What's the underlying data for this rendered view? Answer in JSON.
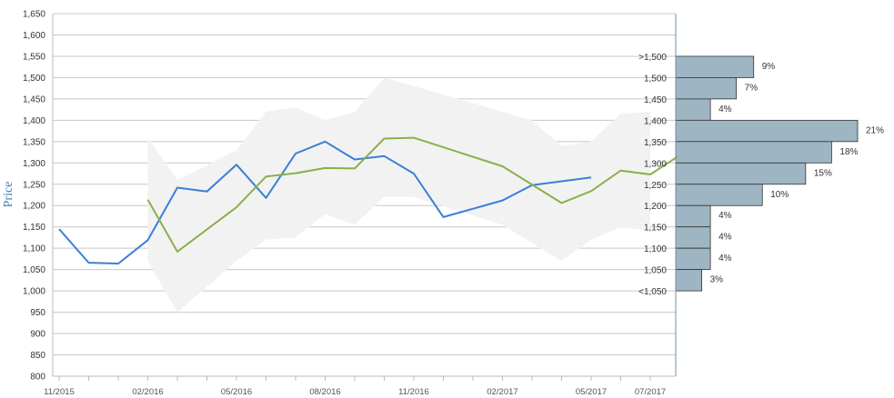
{
  "chart_data": {
    "type": "line",
    "ylabel": "Price",
    "ylim": [
      800,
      1650
    ],
    "y_ticks": [
      800,
      850,
      900,
      950,
      1000,
      1050,
      1100,
      1150,
      1200,
      1250,
      1300,
      1350,
      1400,
      1450,
      1500,
      1550,
      1600,
      1650
    ],
    "y_tick_labels": [
      "800",
      "850",
      "900",
      "950",
      "1,000",
      "1,050",
      "1,100",
      "1,150",
      "1,200",
      "1,250",
      "1,300",
      "1,350",
      "1,400",
      "1,450",
      "1,500",
      "1,550",
      "1,600",
      "1,650"
    ],
    "x_range": [
      "2015-11",
      "2017-07"
    ],
    "x_tick_labels": [
      {
        "date": "2015-11",
        "label": "11/2015"
      },
      {
        "date": "2016-02",
        "label": "02/2016"
      },
      {
        "date": "2016-05",
        "label": "05/2016"
      },
      {
        "date": "2016-08",
        "label": "08/2016"
      },
      {
        "date": "2016-11",
        "label": "11/2016"
      },
      {
        "date": "2017-02",
        "label": "02/2017"
      },
      {
        "date": "2017-05",
        "label": "05/2017"
      },
      {
        "date": "2017-07",
        "label": "07/2017"
      }
    ],
    "grid": true,
    "series": [
      {
        "color": "#3a7fd5",
        "points": [
          {
            "x": "2015-11",
            "y": 1145
          },
          {
            "x": "2015-12",
            "y": 1066
          },
          {
            "x": "2016-01",
            "y": 1064
          },
          {
            "x": "2016-02",
            "y": 1119
          },
          {
            "x": "2016-03",
            "y": 1242
          },
          {
            "x": "2016-04",
            "y": 1233
          },
          {
            "x": "2016-05",
            "y": 1296
          },
          {
            "x": "2016-06",
            "y": 1218
          },
          {
            "x": "2016-07",
            "y": 1322
          },
          {
            "x": "2016-08",
            "y": 1350
          },
          {
            "x": "2016-09",
            "y": 1308
          },
          {
            "x": "2016-10",
            "y": 1316
          },
          {
            "x": "2016-11",
            "y": 1275
          },
          {
            "x": "2016-12",
            "y": 1173
          },
          {
            "x": "2017-02",
            "y": 1212
          },
          {
            "x": "2017-03",
            "y": 1248
          },
          {
            "x": "2017-05",
            "y": 1266
          }
        ]
      },
      {
        "color": "#8ab04a",
        "points": [
          {
            "x": "2016-02",
            "y": 1214
          },
          {
            "x": "2016-03",
            "y": 1092
          },
          {
            "x": "2016-05",
            "y": 1196
          },
          {
            "x": "2016-06",
            "y": 1268
          },
          {
            "x": "2016-07",
            "y": 1276
          },
          {
            "x": "2016-08",
            "y": 1288
          },
          {
            "x": "2016-09",
            "y": 1287
          },
          {
            "x": "2016-10",
            "y": 1357
          },
          {
            "x": "2016-11",
            "y": 1359
          },
          {
            "x": "2017-02",
            "y": 1292
          },
          {
            "x": "2017-04",
            "y": 1206
          },
          {
            "x": "2017-05",
            "y": 1234
          },
          {
            "x": "2017-06",
            "y": 1282
          },
          {
            "x": "2017-07",
            "y": 1273
          },
          {
            "x": "2017-08",
            "y": 1318
          }
        ]
      }
    ],
    "band": {
      "color": "#f2f2f2",
      "upper": [
        {
          "x": "2016-02",
          "y": 1360
        },
        {
          "x": "2016-03",
          "y": 1260
        },
        {
          "x": "2016-05",
          "y": 1330
        },
        {
          "x": "2016-06",
          "y": 1420
        },
        {
          "x": "2016-07",
          "y": 1430
        },
        {
          "x": "2016-08",
          "y": 1400
        },
        {
          "x": "2016-09",
          "y": 1420
        },
        {
          "x": "2016-10",
          "y": 1500
        },
        {
          "x": "2016-11",
          "y": 1480
        },
        {
          "x": "2017-02",
          "y": 1420
        },
        {
          "x": "2017-03",
          "y": 1400
        },
        {
          "x": "2017-04",
          "y": 1340
        },
        {
          "x": "2017-05",
          "y": 1350
        },
        {
          "x": "2017-06",
          "y": 1415
        },
        {
          "x": "2017-07",
          "y": 1420
        }
      ],
      "lower": [
        {
          "x": "2016-02",
          "y": 1070
        },
        {
          "x": "2016-03",
          "y": 950
        },
        {
          "x": "2016-05",
          "y": 1070
        },
        {
          "x": "2016-06",
          "y": 1120
        },
        {
          "x": "2016-07",
          "y": 1125
        },
        {
          "x": "2016-08",
          "y": 1180
        },
        {
          "x": "2016-09",
          "y": 1155
        },
        {
          "x": "2016-10",
          "y": 1220
        },
        {
          "x": "2016-11",
          "y": 1220
        },
        {
          "x": "2017-02",
          "y": 1155
        },
        {
          "x": "2017-04",
          "y": 1070
        },
        {
          "x": "2017-05",
          "y": 1120
        },
        {
          "x": "2017-06",
          "y": 1150
        },
        {
          "x": "2017-07",
          "y": 1140
        }
      ]
    },
    "distribution": {
      "type": "bar",
      "color": "#9eb5c3",
      "bins": [
        {
          "label": ">1,500",
          "low": 1500,
          "high": 1550,
          "percent": 9
        },
        {
          "label": "1,500",
          "low": 1450,
          "high": 1500,
          "percent": 7
        },
        {
          "label": "1,450",
          "low": 1400,
          "high": 1450,
          "percent": 4
        },
        {
          "label": "1,400",
          "low": 1350,
          "high": 1400,
          "percent": 21
        },
        {
          "label": "1,350",
          "low": 1300,
          "high": 1350,
          "percent": 18
        },
        {
          "label": "1,300",
          "low": 1250,
          "high": 1300,
          "percent": 15
        },
        {
          "label": "1,250",
          "low": 1200,
          "high": 1250,
          "percent": 10
        },
        {
          "label": "1,200",
          "low": 1150,
          "high": 1200,
          "percent": 4
        },
        {
          "label": "1,150",
          "low": 1100,
          "high": 1150,
          "percent": 4
        },
        {
          "label": "1,100",
          "low": 1050,
          "high": 1100,
          "percent": 4
        },
        {
          "label": "1,050",
          "low": 1000,
          "high": 1050,
          "percent": 3
        },
        {
          "label": "<1,050",
          "low": 1000,
          "high": 1000,
          "percent": 0
        }
      ],
      "value_labels": [
        "9%",
        "7%",
        "4%",
        "21%",
        "18%",
        "15%",
        "10%",
        "4%",
        "4%",
        "4%",
        "3%"
      ]
    }
  }
}
